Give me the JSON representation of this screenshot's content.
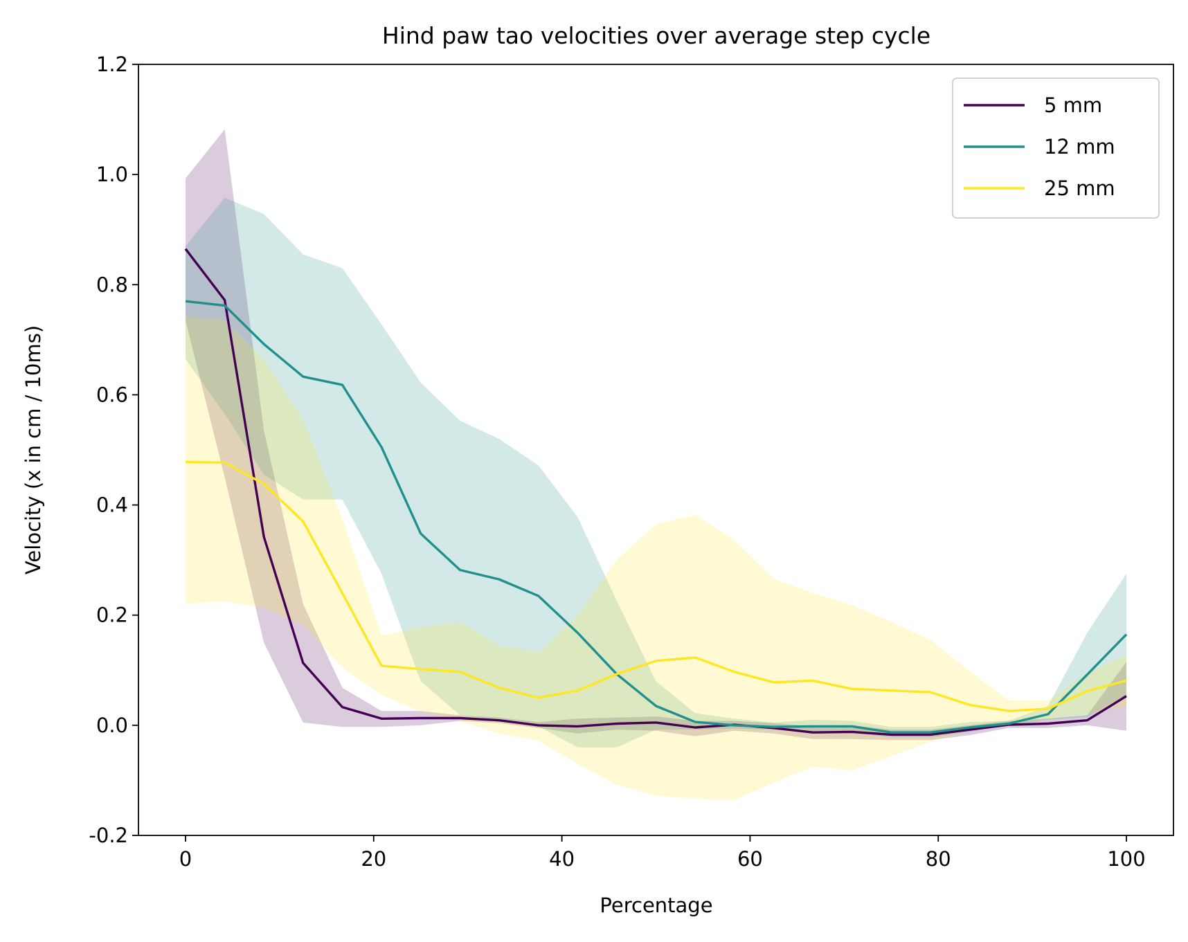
{
  "chart_data": {
    "type": "line",
    "title": "Hind paw tao velocities over average step cycle",
    "xlabel": "Percentage",
    "ylabel": "Velocity (x in cm / 10ms)",
    "xlim": [
      -5,
      105
    ],
    "ylim": [
      -0.2,
      1.2
    ],
    "xticks": [
      0,
      20,
      40,
      60,
      80,
      100
    ],
    "yticks": [
      -0.2,
      0.0,
      0.2,
      0.4,
      0.6,
      0.8,
      1.0,
      1.2
    ],
    "xtick_labels": [
      "0",
      "20",
      "40",
      "60",
      "80",
      "100"
    ],
    "ytick_labels": [
      "-0.2",
      "0.0",
      "0.2",
      "0.4",
      "0.6",
      "0.8",
      "1.0",
      "1.2"
    ],
    "grid": false,
    "legend_position": "top-right",
    "x": [
      0,
      4.17,
      8.33,
      12.5,
      16.67,
      20.83,
      25,
      29.17,
      33.33,
      37.5,
      41.67,
      45.83,
      50,
      54.17,
      58.33,
      62.5,
      66.67,
      70.83,
      75,
      79.17,
      83.33,
      87.5,
      91.67,
      95.83,
      100
    ],
    "series": [
      {
        "name": "5 mm",
        "color": "#440154",
        "values": [
          0.865,
          0.772,
          0.342,
          0.113,
          0.033,
          0.012,
          0.013,
          0.013,
          0.009,
          0.0,
          -0.002,
          0.003,
          0.005,
          -0.004,
          0.001,
          -0.005,
          -0.013,
          -0.012,
          -0.017,
          -0.017,
          -0.008,
          0.001,
          0.003,
          0.009,
          0.053
        ],
        "lower": [
          0.735,
          0.45,
          0.15,
          0.005,
          -0.003,
          -0.003,
          0.0,
          0.008,
          0.004,
          -0.005,
          -0.015,
          -0.008,
          -0.01,
          -0.02,
          -0.01,
          -0.015,
          -0.025,
          -0.025,
          -0.027,
          -0.027,
          -0.018,
          -0.005,
          -0.005,
          0.0,
          -0.01
        ],
        "upper": [
          0.993,
          1.082,
          0.535,
          0.22,
          0.068,
          0.026,
          0.026,
          0.018,
          0.014,
          0.006,
          0.012,
          0.014,
          0.016,
          0.008,
          0.008,
          0.004,
          -0.002,
          0.0,
          -0.008,
          -0.008,
          0.0,
          0.008,
          0.012,
          0.018,
          0.115
        ]
      },
      {
        "name": "12 mm",
        "color": "#21908d",
        "values": [
          0.77,
          0.762,
          0.692,
          0.633,
          0.618,
          0.505,
          0.348,
          0.282,
          0.265,
          0.235,
          0.168,
          0.093,
          0.035,
          0.006,
          0.0,
          -0.003,
          -0.002,
          -0.002,
          -0.013,
          -0.013,
          -0.004,
          0.003,
          0.02,
          0.092,
          0.165
        ],
        "lower": [
          0.665,
          0.565,
          0.455,
          0.41,
          0.41,
          0.275,
          0.08,
          0.018,
          0.01,
          -0.002,
          -0.04,
          -0.04,
          -0.008,
          -0.008,
          -0.006,
          -0.008,
          -0.012,
          -0.012,
          -0.022,
          -0.022,
          -0.012,
          0.0,
          0.01,
          0.015,
          0.055
        ],
        "upper": [
          0.87,
          0.958,
          0.928,
          0.855,
          0.83,
          0.728,
          0.622,
          0.553,
          0.52,
          0.472,
          0.378,
          0.226,
          0.08,
          0.022,
          0.012,
          0.005,
          0.01,
          0.008,
          -0.003,
          -0.003,
          0.006,
          0.008,
          0.035,
          0.168,
          0.275
        ]
      },
      {
        "name": "25 mm",
        "color": "#fde725",
        "values": [
          0.478,
          0.477,
          0.438,
          0.37,
          0.24,
          0.108,
          0.102,
          0.097,
          0.068,
          0.05,
          0.063,
          0.093,
          0.117,
          0.123,
          0.097,
          0.078,
          0.081,
          0.066,
          0.063,
          0.06,
          0.037,
          0.026,
          0.03,
          0.062,
          0.081
        ],
        "lower": [
          0.22,
          0.225,
          0.213,
          0.182,
          0.105,
          0.055,
          0.025,
          0.008,
          -0.015,
          -0.028,
          -0.07,
          -0.108,
          -0.128,
          -0.133,
          -0.136,
          -0.104,
          -0.075,
          -0.082,
          -0.056,
          -0.03,
          -0.01,
          0.0,
          0.01,
          0.02,
          0.035
        ],
        "upper": [
          0.742,
          0.735,
          0.665,
          0.555,
          0.375,
          0.163,
          0.178,
          0.188,
          0.145,
          0.132,
          0.2,
          0.3,
          0.365,
          0.382,
          0.336,
          0.266,
          0.24,
          0.218,
          0.188,
          0.155,
          0.098,
          0.045,
          0.045,
          0.095,
          0.128
        ]
      }
    ]
  }
}
